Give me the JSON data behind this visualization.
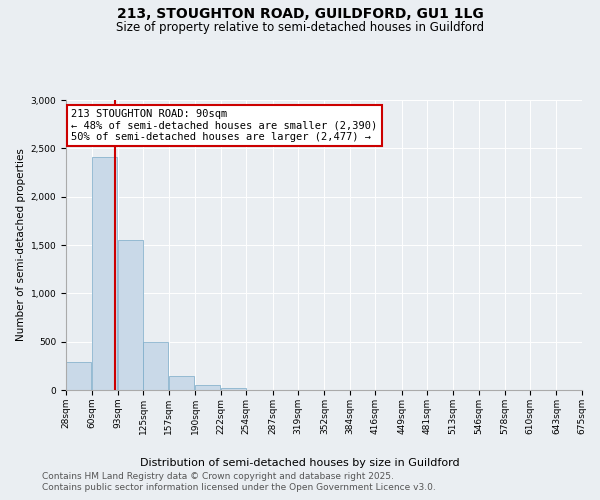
{
  "title_line1": "213, STOUGHTON ROAD, GUILDFORD, GU1 1LG",
  "title_line2": "Size of property relative to semi-detached houses in Guildford",
  "xlabel": "Distribution of semi-detached houses by size in Guildford",
  "ylabel": "Number of semi-detached properties",
  "bin_edges": [
    28,
    60,
    93,
    125,
    157,
    190,
    222,
    254,
    287,
    319,
    352,
    384,
    416,
    449,
    481,
    513,
    546,
    578,
    610,
    643,
    675
  ],
  "bar_heights": [
    290,
    2410,
    1550,
    500,
    150,
    50,
    20,
    5,
    2,
    1,
    0,
    0,
    0,
    0,
    0,
    0,
    0,
    0,
    0,
    0
  ],
  "bar_color": "#c9d9e8",
  "bar_edgecolor": "#7aaac8",
  "property_size": 90,
  "vline_color": "#cc0000",
  "annotation_text": "213 STOUGHTON ROAD: 90sqm\n← 48% of semi-detached houses are smaller (2,390)\n50% of semi-detached houses are larger (2,477) →",
  "annotation_box_color": "#ffffff",
  "annotation_border_color": "#cc0000",
  "ylim": [
    0,
    3000
  ],
  "yticks": [
    0,
    500,
    1000,
    1500,
    2000,
    2500,
    3000
  ],
  "background_color": "#eaeef2",
  "plot_background_color": "#eaeef2",
  "footer_line1": "Contains HM Land Registry data © Crown copyright and database right 2025.",
  "footer_line2": "Contains public sector information licensed under the Open Government Licence v3.0.",
  "title_fontsize": 10,
  "subtitle_fontsize": 8.5,
  "ylabel_fontsize": 7.5,
  "xlabel_fontsize": 8,
  "tick_fontsize": 6.5,
  "annotation_fontsize": 7.5,
  "footer_fontsize": 6.5
}
